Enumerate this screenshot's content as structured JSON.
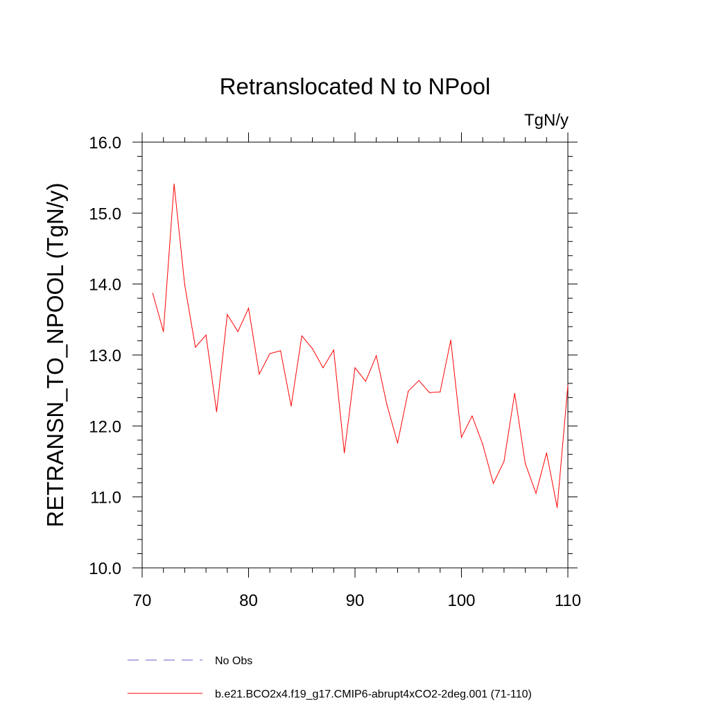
{
  "chart_data": {
    "type": "line",
    "title": "Retranslocated N to NPool",
    "units_label": "TgN/y",
    "ylabel": "RETRANSN_TO_NPOOL  (TgN/y)",
    "xlabel": "",
    "xlim": [
      70,
      110
    ],
    "ylim": [
      10.0,
      16.0
    ],
    "x_ticks": [
      70,
      80,
      90,
      100,
      110
    ],
    "y_ticks": [
      10.0,
      11.0,
      12.0,
      13.0,
      14.0,
      15.0,
      16.0
    ],
    "x_tick_labels": [
      "70",
      "80",
      "90",
      "100",
      "110"
    ],
    "y_tick_labels": [
      "10.0",
      "11.0",
      "12.0",
      "13.0",
      "14.0",
      "15.0",
      "16.0"
    ],
    "grid": false,
    "legend_position": "bottom",
    "series": [
      {
        "name": "b.e21.BCO2x4.f19_g17.CMIP6-abrupt4xCO2-2deg.001 (71-110)",
        "color": "#ff0000",
        "style": "solid",
        "x": [
          71,
          72,
          73,
          74,
          75,
          76,
          77,
          78,
          79,
          80,
          81,
          82,
          83,
          84,
          85,
          86,
          87,
          88,
          89,
          90,
          91,
          92,
          93,
          94,
          95,
          96,
          97,
          98,
          99,
          100,
          101,
          102,
          103,
          104,
          105,
          106,
          107,
          108,
          109,
          110
        ],
        "values": [
          13.87,
          13.33,
          15.41,
          13.99,
          13.11,
          13.28,
          12.2,
          13.57,
          13.33,
          13.66,
          12.73,
          13.02,
          13.06,
          12.28,
          13.27,
          13.09,
          12.82,
          13.07,
          11.62,
          12.82,
          12.63,
          12.99,
          12.3,
          11.76,
          12.49,
          12.64,
          12.47,
          12.48,
          13.21,
          11.84,
          12.14,
          11.74,
          11.19,
          11.5,
          12.46,
          11.47,
          11.05,
          11.62,
          10.85,
          12.57
        ]
      }
    ],
    "legend": [
      {
        "label": "No Obs",
        "color": "#6a5acd",
        "style": "dashed"
      },
      {
        "label": "b.e21.BCO2x4.f19_g17.CMIP6-abrupt4xCO2-2deg.001 (71-110)",
        "color": "#ff0000",
        "style": "solid"
      }
    ]
  }
}
